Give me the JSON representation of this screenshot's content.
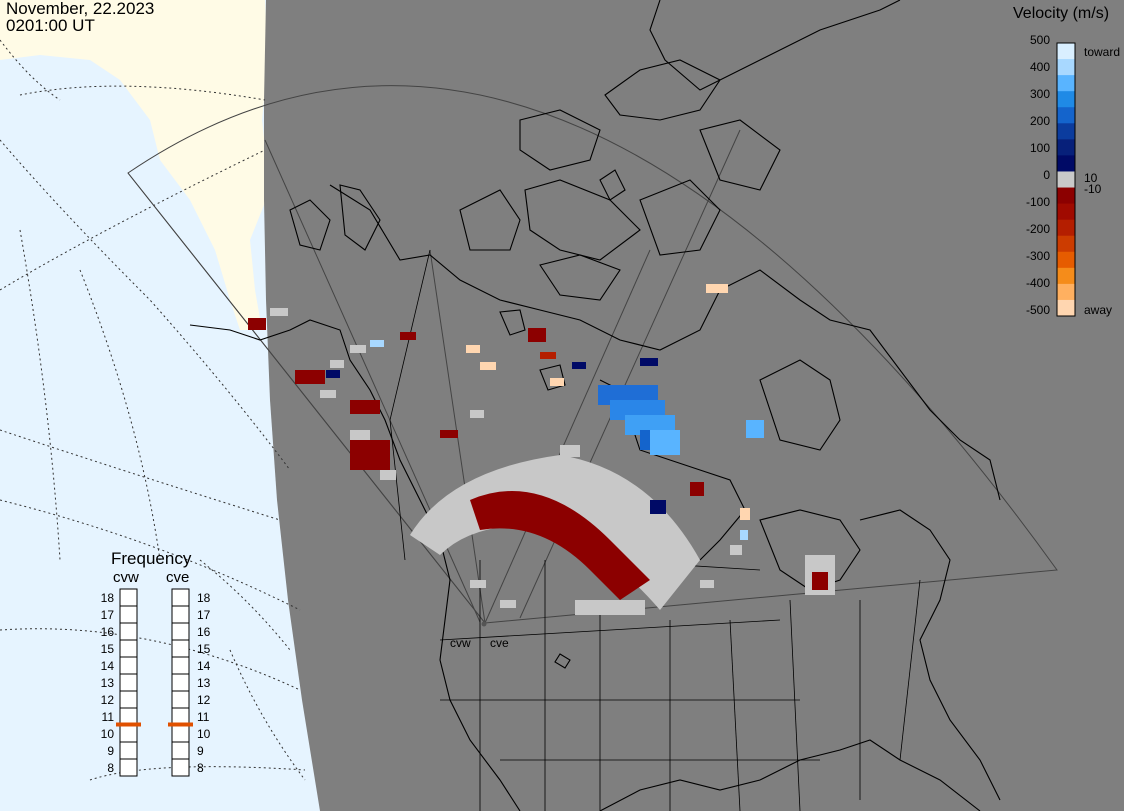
{
  "header": {
    "date": "November, 22.2023",
    "time": "0201:00 UT"
  },
  "colorbar": {
    "title": "Velocity (m/s)",
    "ticks": [
      "500",
      "400",
      "300",
      "200",
      "100",
      "0",
      "-100",
      "-200",
      "-300",
      "-400",
      "-500"
    ],
    "inner_ticks": [
      "10",
      "-10"
    ],
    "toward_label": "toward",
    "away_label": "away",
    "colors": [
      "#d9efff",
      "#a8d8ff",
      "#59b4ff",
      "#1f8ae6",
      "#1464cc",
      "#0b3c9e",
      "#07207a",
      "#000a66",
      "#c9c9c9",
      "#8c0000",
      "#a00a00",
      "#b41e00",
      "#cc3c00",
      "#e65c00",
      "#f58c1a",
      "#ffb060",
      "#ffd6b0"
    ]
  },
  "frequency": {
    "title": "Frequency",
    "left_label": "cvw",
    "right_label": "cve",
    "scale": [
      "18",
      "17",
      "16",
      "15",
      "14",
      "13",
      "12",
      "11",
      "10",
      "9",
      "8"
    ],
    "cvw_mhz": 11,
    "cve_mhz": 11,
    "marker_color": "#e05000"
  },
  "sites": {
    "west": "cvw",
    "east": "cve"
  },
  "map_colors": {
    "ocean": "#e6f4ff",
    "land_light": "#fffbe6",
    "night": "#7f7f7f",
    "ground": "#c8c8c8"
  }
}
